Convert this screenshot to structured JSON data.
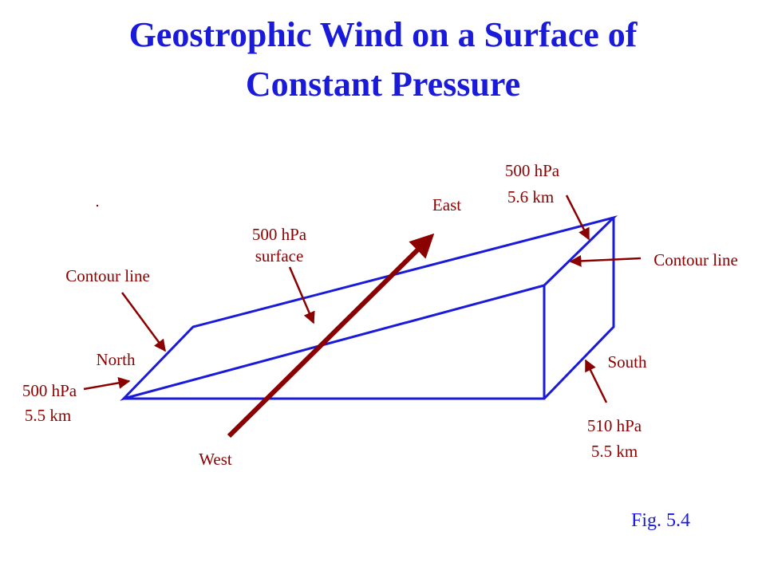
{
  "title_lines": [
    "Geostrophic Wind on a Surface of",
    "Constant Pressure"
  ],
  "labels": {
    "east": "East",
    "west": "West",
    "north": "North",
    "south": "South",
    "contour_left": "Contour line",
    "contour_right": "Contour line",
    "surface": [
      "500 hPa",
      "surface"
    ],
    "top_right": [
      "500 hPa",
      "5.6 km"
    ],
    "left_corner": [
      "500 hPa",
      "5.5 km"
    ],
    "bottom_right": [
      "510 hPa",
      "5.5 km"
    ]
  },
  "caption": "Fig. 5.4"
}
